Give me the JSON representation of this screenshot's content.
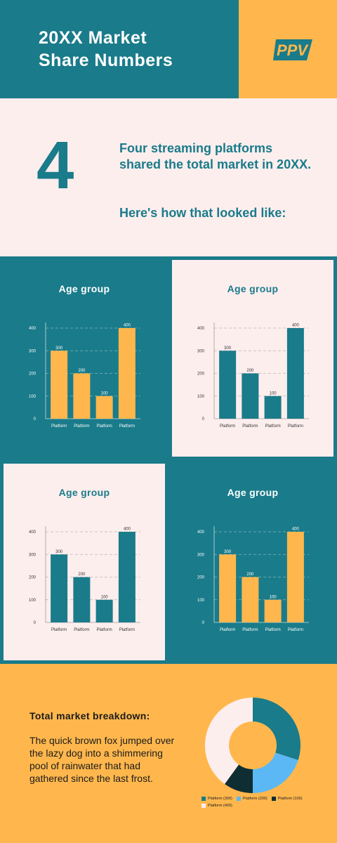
{
  "header": {
    "title_line1": "20XX Market",
    "title_line2": "Share Numbers",
    "logo_text": "PPV"
  },
  "intro": {
    "number": "4",
    "text": "Four streaming platforms shared the total market in 20XX.",
    "subtext": "Here's how that looked like:"
  },
  "colors": {
    "teal": "#1a7b8a",
    "orange": "#ffb74d",
    "light": "#fdeeee",
    "blue": "#5bb8f5",
    "dark": "#0f2e33"
  },
  "chart_data": [
    {
      "type": "bar",
      "title": "Age group",
      "categories": [
        "Platform",
        "Platform",
        "Platform",
        "Platform"
      ],
      "values": [
        300,
        200,
        100,
        400
      ],
      "ylim": [
        0,
        400
      ],
      "yticks": [
        0,
        100,
        200,
        300,
        400
      ],
      "grid": true,
      "bar_color": "#ffb74d",
      "background": "#1a7b8a"
    },
    {
      "type": "bar",
      "title": "Age group",
      "categories": [
        "Platform",
        "Platform",
        "Platform",
        "Platform"
      ],
      "values": [
        300,
        200,
        100,
        400
      ],
      "ylim": [
        0,
        400
      ],
      "yticks": [
        0,
        100,
        200,
        300,
        400
      ],
      "grid": true,
      "bar_color": "#1a7b8a",
      "background": "#fdeeee"
    },
    {
      "type": "bar",
      "title": "Age group",
      "categories": [
        "Platform",
        "Platform",
        "Platform",
        "Platform"
      ],
      "values": [
        300,
        200,
        100,
        400
      ],
      "ylim": [
        0,
        400
      ],
      "yticks": [
        0,
        100,
        200,
        300,
        400
      ],
      "grid": true,
      "bar_color": "#1a7b8a",
      "background": "#fdeeee"
    },
    {
      "type": "bar",
      "title": "Age group",
      "categories": [
        "Platform",
        "Platform",
        "Platform",
        "Platform"
      ],
      "values": [
        300,
        200,
        100,
        400
      ],
      "ylim": [
        0,
        400
      ],
      "yticks": [
        0,
        100,
        200,
        300,
        400
      ],
      "grid": true,
      "bar_color": "#ffb74d",
      "background": "#1a7b8a"
    },
    {
      "type": "pie",
      "title": "Total market breakdown:",
      "labels": [
        "Platform (300)",
        "Platform (200)",
        "Platform (100)",
        "Platform (400)"
      ],
      "values": [
        300,
        200,
        100,
        400
      ],
      "colors": [
        "#1a7b8a",
        "#5bb8f5",
        "#0f2e33",
        "#fdeeee"
      ],
      "donut": true,
      "legend": "bottom"
    }
  ],
  "bottom": {
    "title": "Total market breakdown:",
    "body": "The quick brown fox jumped over the lazy dog into a shimmering pool of rainwater that had gathered since the last frost."
  }
}
